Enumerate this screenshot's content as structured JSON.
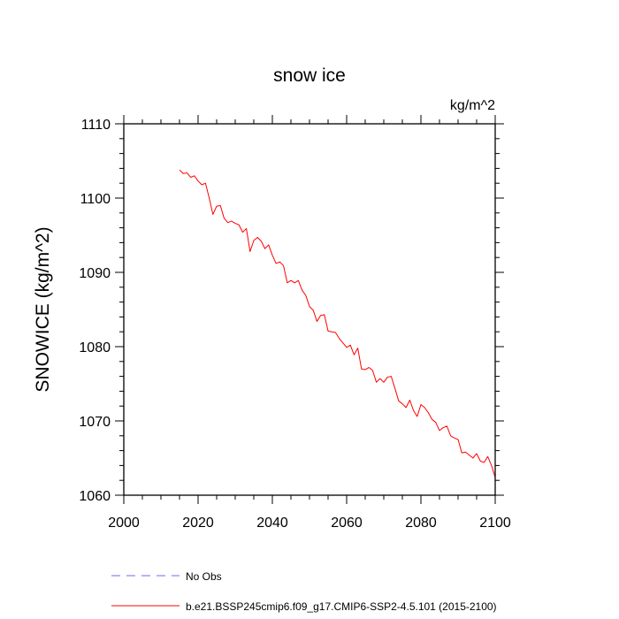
{
  "chart_data": {
    "type": "line",
    "title": "snow ice",
    "units": "kg/m^2",
    "ylabel": "SNOWICE  (kg/m^2)",
    "xlabel": "",
    "xlim": [
      2000,
      2100
    ],
    "ylim": [
      1060,
      1110
    ],
    "xticks": [
      2000,
      2020,
      2040,
      2060,
      2080,
      2100
    ],
    "yticks": [
      1060,
      1070,
      1080,
      1090,
      1100,
      1110
    ],
    "legend": [
      {
        "label": "No Obs",
        "color": "#6a6aff",
        "style": "dashed"
      },
      {
        "label": "b.e21.BSSP245cmip6.f09_g17.CMIP6-SSP2-4.5.101 (2015-2100)",
        "color": "#ff0000",
        "style": "solid"
      }
    ],
    "series": [
      {
        "name": "b.e21.BSSP245cmip6.f09_g17.CMIP6-SSP2-4.5.101 (2015-2100)",
        "color": "#ff0000",
        "x": [
          2015,
          2016,
          2017,
          2018,
          2019,
          2020,
          2021,
          2022,
          2023,
          2024,
          2025,
          2026,
          2027,
          2028,
          2029,
          2030,
          2031,
          2032,
          2033,
          2034,
          2035,
          2036,
          2037,
          2038,
          2039,
          2040,
          2041,
          2042,
          2043,
          2044,
          2045,
          2046,
          2047,
          2048,
          2049,
          2050,
          2051,
          2052,
          2053,
          2054,
          2055,
          2056,
          2057,
          2058,
          2059,
          2060,
          2061,
          2062,
          2063,
          2064,
          2065,
          2066,
          2067,
          2068,
          2069,
          2070,
          2071,
          2072,
          2073,
          2074,
          2075,
          2076,
          2077,
          2078,
          2079,
          2080,
          2081,
          2082,
          2083,
          2084,
          2085,
          2086,
          2087,
          2088,
          2089,
          2090,
          2091,
          2092,
          2093,
          2094,
          2095,
          2096,
          2097,
          2098,
          2099,
          2100
        ],
        "y": [
          1103.8,
          1103.3,
          1103.4,
          1102.8,
          1103.0,
          1102.3,
          1101.8,
          1102.0,
          1100.0,
          1097.8,
          1098.9,
          1099.0,
          1097.3,
          1096.7,
          1096.9,
          1096.6,
          1096.4,
          1095.4,
          1095.9,
          1092.8,
          1094.3,
          1094.7,
          1094.2,
          1093.2,
          1093.7,
          1092.3,
          1091.2,
          1091.4,
          1090.9,
          1088.6,
          1088.9,
          1088.6,
          1088.9,
          1087.6,
          1086.9,
          1085.4,
          1084.9,
          1083.4,
          1084.2,
          1084.3,
          1082.1,
          1082.0,
          1081.9,
          1081.1,
          1080.5,
          1079.9,
          1080.2,
          1078.9,
          1079.8,
          1077.0,
          1076.9,
          1077.2,
          1076.8,
          1075.2,
          1075.7,
          1075.2,
          1075.9,
          1076.0,
          1074.4,
          1072.7,
          1072.3,
          1071.8,
          1072.8,
          1071.4,
          1070.6,
          1072.2,
          1071.8,
          1071.1,
          1070.2,
          1069.8,
          1068.7,
          1069.1,
          1069.3,
          1068.0,
          1067.7,
          1067.5,
          1065.7,
          1065.8,
          1065.4,
          1065.0,
          1065.6,
          1064.6,
          1064.4,
          1065.2,
          1064.0,
          1062.4
        ]
      }
    ]
  }
}
